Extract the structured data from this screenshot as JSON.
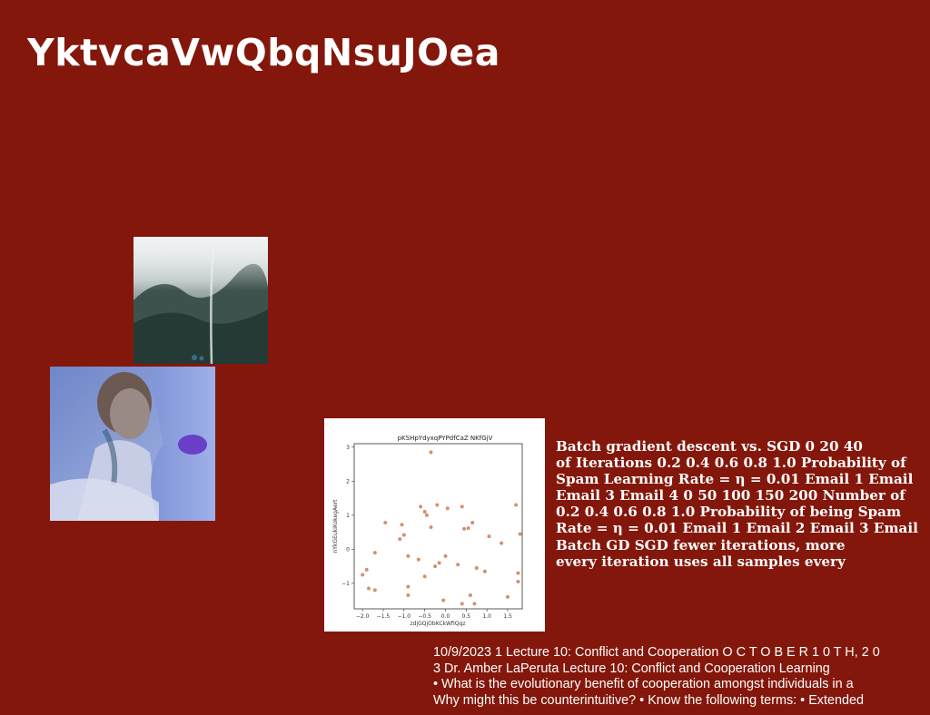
{
  "slide": {
    "title": "YktvcaVwQbqNsuJOea"
  },
  "notes": [
    "Batch gradient descent vs. SGD 0 20 40",
    "of Iterations 0.2 0.4 0.6 0.8 1.0 Probability of",
    "Spam Learning Rate = η = 0.01 Email 1 Email",
    "Email 3 Email 4 0 50 100 150 200 Number of",
    "0.2 0.4 0.6 0.8 1.0 Probability of being Spam",
    "Rate = η = 0.01 Email 1 Email 2 Email 3 Email",
    "Batch GD SGD fewer iterations, more",
    "every iteration uses all samples every"
  ],
  "footer": [
    "10/9/2023 1 Lecture 10: Conflict and Cooperation O C T O B E R 1 0 T H, 2 0",
    "3 Dr. Amber LaPeruta Lecture 10: Conflict and Cooperation Learning",
    "• What is the evolutionary benefit of cooperation amongst individuals in a",
    "Why might this be counterintuitive? • Know the following terms: • Extended"
  ],
  "images": {
    "photo1": "misty mountain waterfall",
    "photo2": "woman with blue skin and purple lips"
  },
  "chart_data": {
    "type": "scatter",
    "title": "pKSHpYdyxqPYPdfCaZ NKfGjV",
    "xlabel": "zdjGQjObKCkWfIQqz",
    "ylabel": "nYkGEukiKokegAert",
    "xlim": [
      -2.2,
      1.85
    ],
    "ylim": [
      -1.75,
      3.1
    ],
    "xticks": [
      "−2.0",
      "−1.5",
      "−1.0",
      "−0.5",
      "0.0",
      "0.5",
      "1.0",
      "1.5"
    ],
    "yticks": [
      "3",
      "2",
      "1",
      "0",
      "−1"
    ],
    "point_color": "#d4906e",
    "grid": false,
    "points": [
      {
        "x": -0.35,
        "y": 2.85
      },
      {
        "x": -2.0,
        "y": -0.75
      },
      {
        "x": -1.9,
        "y": -0.6
      },
      {
        "x": -1.85,
        "y": -1.15
      },
      {
        "x": -1.7,
        "y": -1.2
      },
      {
        "x": -1.7,
        "y": -0.1
      },
      {
        "x": -1.45,
        "y": 0.78
      },
      {
        "x": -1.1,
        "y": 0.3
      },
      {
        "x": -1.05,
        "y": 0.72
      },
      {
        "x": -1.0,
        "y": 0.42
      },
      {
        "x": -0.9,
        "y": -0.2
      },
      {
        "x": -0.9,
        "y": -1.1
      },
      {
        "x": -0.9,
        "y": -1.35
      },
      {
        "x": -0.65,
        "y": -0.3
      },
      {
        "x": -0.6,
        "y": 1.25
      },
      {
        "x": -0.5,
        "y": 1.1
      },
      {
        "x": -0.45,
        "y": 1.0
      },
      {
        "x": -0.5,
        "y": -0.8
      },
      {
        "x": -0.35,
        "y": 0.65
      },
      {
        "x": -0.25,
        "y": -0.5
      },
      {
        "x": -0.2,
        "y": 1.3
      },
      {
        "x": -0.15,
        "y": -0.4
      },
      {
        "x": -0.05,
        "y": -1.5
      },
      {
        "x": 0.0,
        "y": -0.2
      },
      {
        "x": 0.05,
        "y": 1.2
      },
      {
        "x": 0.3,
        "y": -0.45
      },
      {
        "x": 0.4,
        "y": 1.25
      },
      {
        "x": 0.4,
        "y": -1.6
      },
      {
        "x": 0.45,
        "y": 0.6
      },
      {
        "x": 0.55,
        "y": 0.62
      },
      {
        "x": 0.6,
        "y": -1.35
      },
      {
        "x": 0.65,
        "y": 0.78
      },
      {
        "x": 0.7,
        "y": -1.6
      },
      {
        "x": 0.75,
        "y": -0.55
      },
      {
        "x": 0.95,
        "y": -0.65
      },
      {
        "x": 1.05,
        "y": 0.38
      },
      {
        "x": 1.35,
        "y": 0.18
      },
      {
        "x": 1.5,
        "y": -1.4
      },
      {
        "x": 1.7,
        "y": 1.3
      },
      {
        "x": 1.75,
        "y": -0.7
      },
      {
        "x": 1.75,
        "y": -0.95
      },
      {
        "x": 1.8,
        "y": 0.45
      }
    ]
  }
}
